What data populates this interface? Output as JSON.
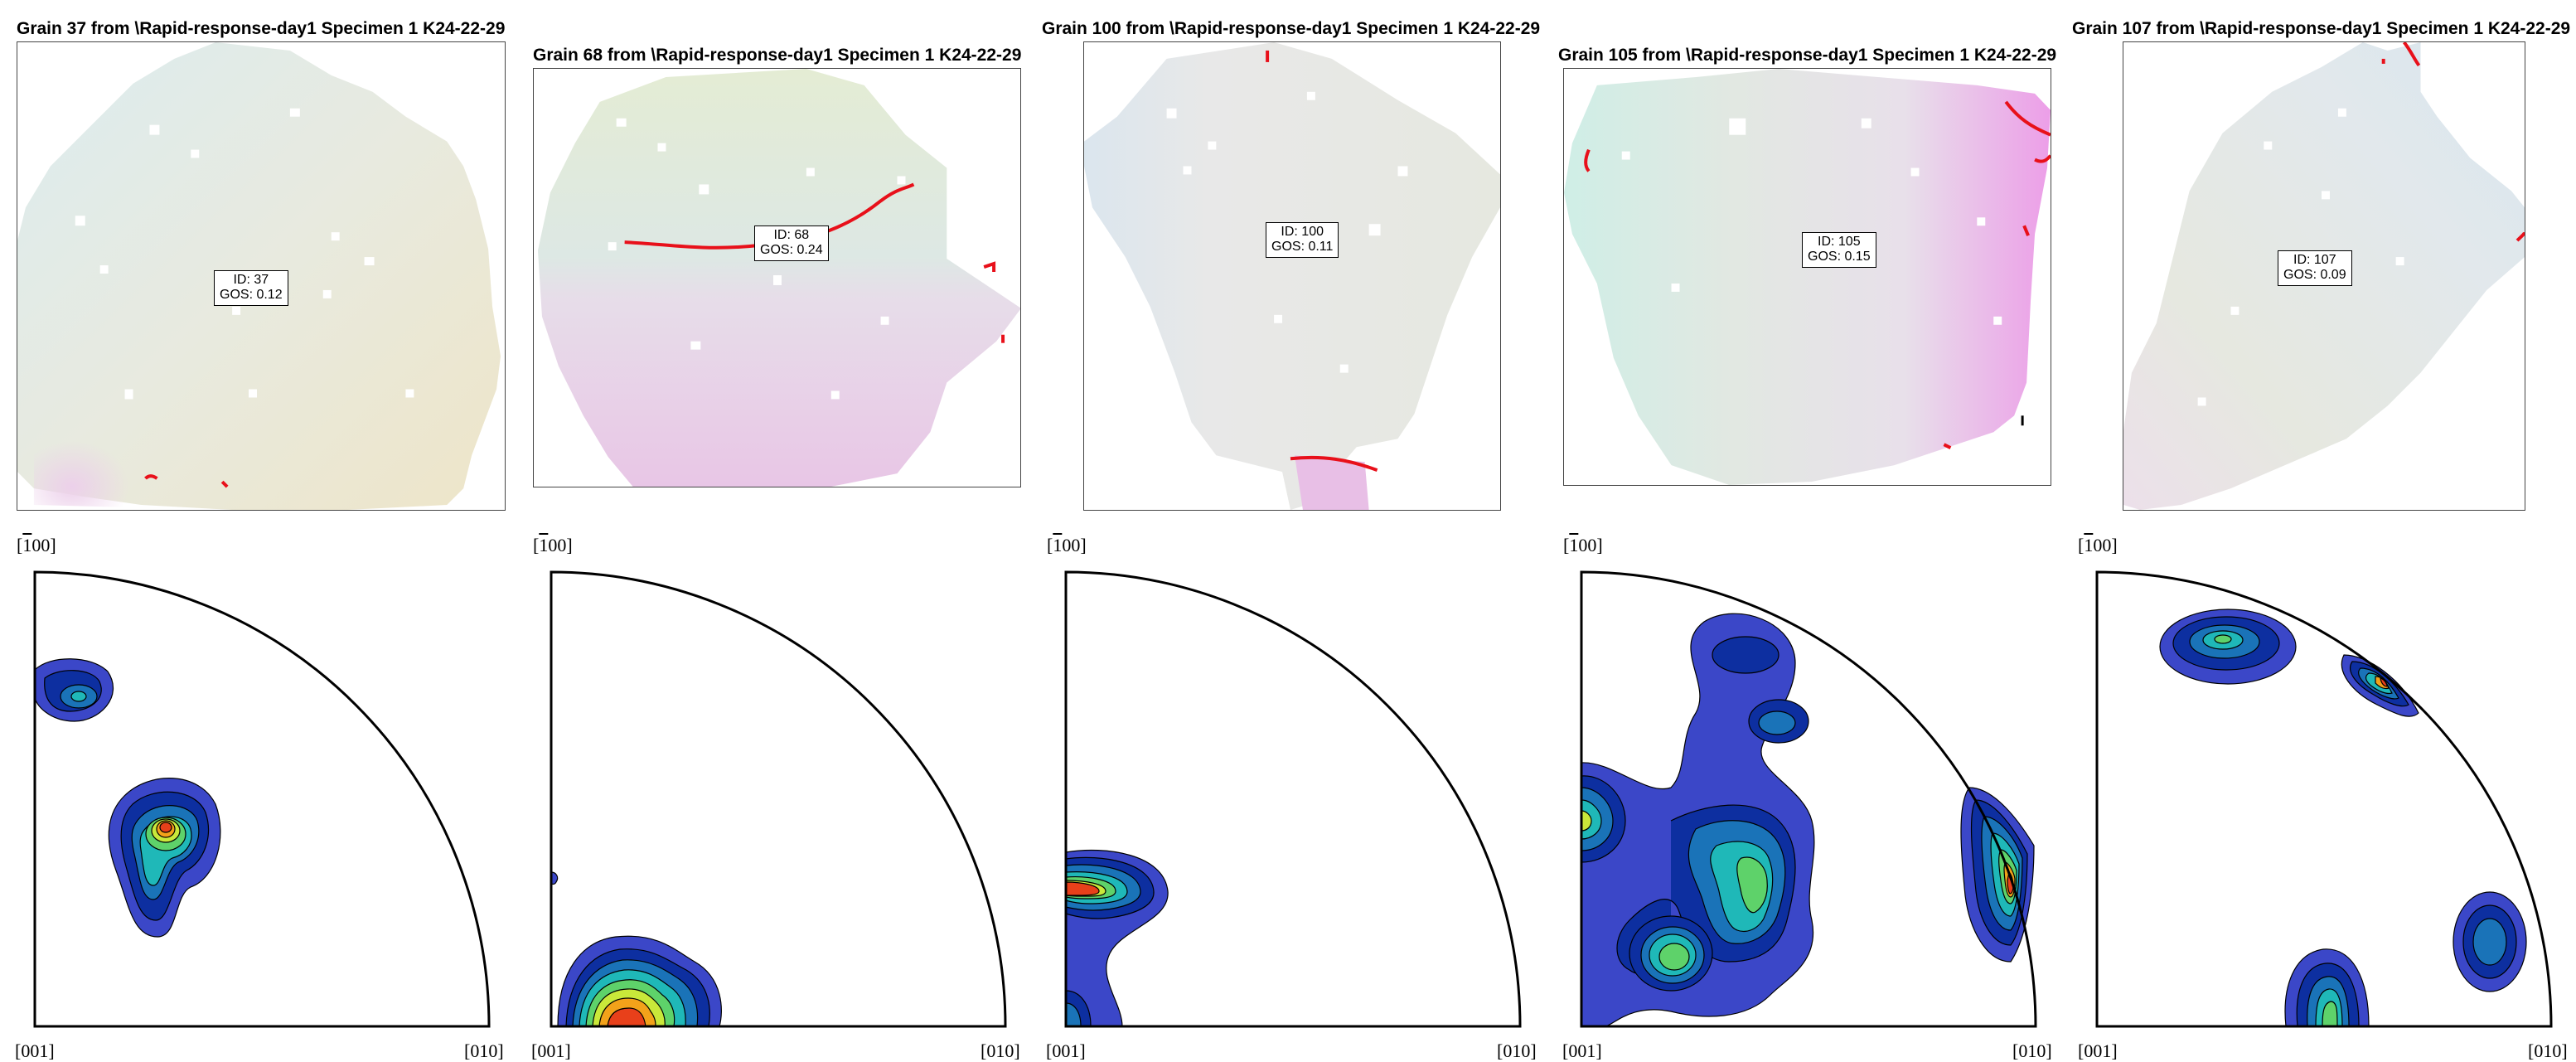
{
  "grains": [
    {
      "title": "Grain 37 from \\Rapid-response-day1 Specimen 1 K24-22-29",
      "id_label": "ID: 37",
      "gos_label": "GOS: 0.12",
      "pole_figure": {
        "top_label_pre": "[",
        "top_label_bar": "1",
        "top_label_post": "00]",
        "left_label": "[001]",
        "right_label": "[010]"
      }
    },
    {
      "title": "Grain 68 from \\Rapid-response-day1 Specimen 1 K24-22-29",
      "id_label": "ID: 68",
      "gos_label": "GOS: 0.24",
      "pole_figure": {
        "top_label_pre": "[",
        "top_label_bar": "1",
        "top_label_post": "00]",
        "left_label": "[001]",
        "right_label": "[010]"
      }
    },
    {
      "title": "Grain 100 from \\Rapid-response-day1 Specimen 1 K24-22-29",
      "id_label": "ID: 100",
      "gos_label": "GOS: 0.11",
      "pole_figure": {
        "top_label_pre": "[",
        "top_label_bar": "1",
        "top_label_post": "00]",
        "left_label": "[001]",
        "right_label": "[010]"
      }
    },
    {
      "title": "Grain 105 from \\Rapid-response-day1 Specimen 1 K24-22-29",
      "id_label": "ID: 105",
      "gos_label": "GOS: 0.15",
      "pole_figure": {
        "top_label_pre": "[",
        "top_label_bar": "1",
        "top_label_post": "00]",
        "left_label": "[001]",
        "right_label": "[010]"
      }
    },
    {
      "title": "Grain 107 from \\Rapid-response-day1 Specimen 1 K24-22-29",
      "id_label": "ID: 107",
      "gos_label": "GOS: 0.09",
      "pole_figure": {
        "top_label_pre": "[",
        "top_label_bar": "1",
        "top_label_post": "00]",
        "left_label": "[001]",
        "right_label": "[010]"
      }
    }
  ],
  "colors": {
    "boundary": "#e8101a",
    "contour_levels": [
      "#3b47c8",
      "#0d2fa0",
      "#1a73b8",
      "#1fb8b8",
      "#5ed26a",
      "#c9e83a",
      "#f3a21a",
      "#e8401a"
    ]
  }
}
